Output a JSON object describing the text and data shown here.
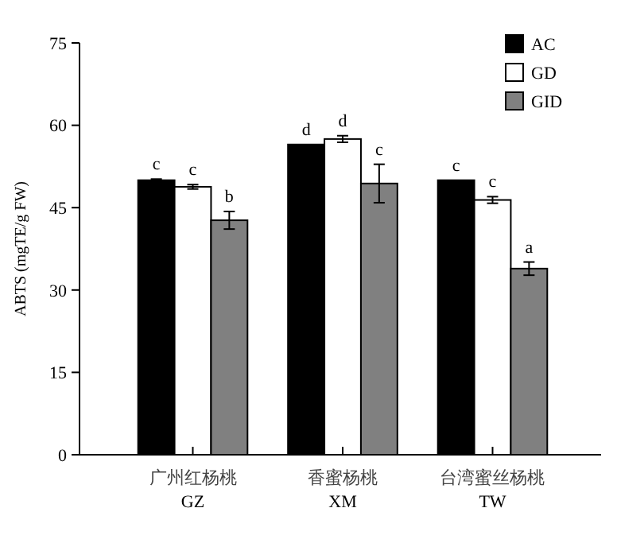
{
  "chart_data": {
    "type": "bar",
    "ylabel": "ABTS (mgTE/g FW)",
    "categories": [
      "广州红杨桃\nGZ",
      "香蜜杨桃\nXM",
      "台湾蜜丝杨桃\nTW"
    ],
    "series": [
      {
        "name": "AC",
        "color": "#000000",
        "values": [
          50.0,
          56.5,
          50.0
        ],
        "errors": [
          0.2,
          null,
          null
        ]
      },
      {
        "name": "GD",
        "color": "#ffffff",
        "values": [
          48.8,
          57.5,
          46.4
        ],
        "errors": [
          0.4,
          0.6,
          0.6
        ]
      },
      {
        "name": "GID",
        "color": "#808080",
        "values": [
          42.7,
          49.4,
          33.9
        ],
        "errors": [
          1.6,
          3.5,
          1.2
        ]
      }
    ],
    "ylim": [
      0,
      75
    ],
    "yticks": [
      0,
      15,
      30,
      45,
      60,
      75
    ],
    "grid": false,
    "legend": "top right",
    "annotations": [
      "c",
      "c",
      "b",
      "d",
      "d",
      "c",
      "c",
      "c",
      "a"
    ]
  }
}
